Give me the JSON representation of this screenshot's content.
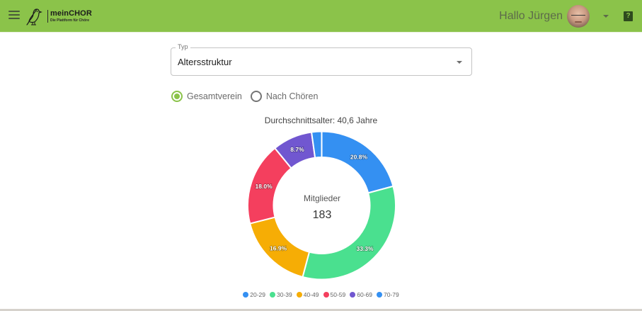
{
  "header": {
    "menu_icon": "hamburger-menu-icon",
    "logo": {
      "name": "meinCHOR",
      "tagline": "Die Plattform für Chöre",
      "icon": "bird-logo-icon"
    },
    "greeting": "Hallo Jürgen",
    "avatar": "user-avatar",
    "help_label": "?",
    "brand_color": "#8bc34a"
  },
  "filter": {
    "type_label": "Typ",
    "type_value": "Altersstruktur",
    "radios": [
      {
        "label": "Gesamtverein",
        "checked": true
      },
      {
        "label": "Nach Chören",
        "checked": false
      }
    ]
  },
  "chart": {
    "title": "Durchschnittsalter: 40,6 Jahre",
    "center_label": "Mitglieder",
    "center_value": "183"
  },
  "chart_data": {
    "type": "pie",
    "variant": "doughnut",
    "title": "Durchschnittsalter: 40,6 Jahre",
    "center_text": [
      "Mitglieder",
      "183"
    ],
    "categories": [
      "20-29",
      "30-39",
      "40-49",
      "50-59",
      "60-69",
      "70-79"
    ],
    "values": [
      20.8,
      33.3,
      16.9,
      18.0,
      8.7,
      2.2
    ],
    "value_labels": [
      "20.8%",
      "33.3%",
      "16.9%",
      "18.0%",
      "8.7%",
      ""
    ],
    "colors": [
      "#3490f2",
      "#4ae08f",
      "#f6ad05",
      "#f43f5e",
      "#7157d0",
      "#3490f2"
    ],
    "legend_position": "bottom",
    "total": 183
  }
}
